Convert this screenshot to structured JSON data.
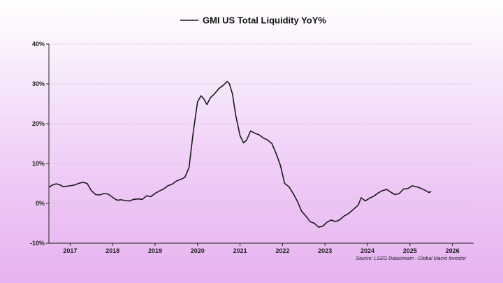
{
  "chart_data": {
    "type": "line",
    "title": "",
    "xlabel": "",
    "ylabel": "",
    "legend_position": "top-center",
    "grid": "horizontal dashed",
    "ylim": [
      -10,
      40
    ],
    "y_ticks": [
      40,
      30,
      20,
      10,
      0,
      -10
    ],
    "y_tick_labels": [
      "40%",
      "30%",
      "20%",
      "10%",
      "0%",
      "-10%"
    ],
    "x_range": [
      2016.5,
      2026.5
    ],
    "x_ticks": [
      2017,
      2018,
      2019,
      2020,
      2021,
      2022,
      2023,
      2024,
      2025,
      2026
    ],
    "x_tick_labels": [
      "2017",
      "2018",
      "2019",
      "2020",
      "2021",
      "2022",
      "2023",
      "2024",
      "2025",
      "2026"
    ],
    "source": "Source: LSEG Datastream - Global Macro Investor",
    "series": [
      {
        "name": "GMI US Total Liquidity YoY%",
        "color": "#1a1a1a",
        "x": [
          2016.5,
          2016.58,
          2016.67,
          2016.75,
          2016.83,
          2016.92,
          2017.0,
          2017.1,
          2017.2,
          2017.3,
          2017.4,
          2017.5,
          2017.6,
          2017.7,
          2017.8,
          2017.9,
          2018.0,
          2018.1,
          2018.2,
          2018.3,
          2018.4,
          2018.5,
          2018.6,
          2018.7,
          2018.8,
          2018.9,
          2019.0,
          2019.1,
          2019.2,
          2019.3,
          2019.4,
          2019.5,
          2019.6,
          2019.7,
          2019.8,
          2019.9,
          2020.0,
          2020.08,
          2020.15,
          2020.22,
          2020.3,
          2020.4,
          2020.5,
          2020.6,
          2020.7,
          2020.75,
          2020.82,
          2020.9,
          2021.0,
          2021.08,
          2021.15,
          2021.25,
          2021.35,
          2021.45,
          2021.55,
          2021.65,
          2021.75,
          2021.85,
          2021.95,
          2022.05,
          2022.15,
          2022.25,
          2022.35,
          2022.45,
          2022.55,
          2022.65,
          2022.75,
          2022.85,
          2022.95,
          2023.05,
          2023.15,
          2023.25,
          2023.35,
          2023.45,
          2023.55,
          2023.65,
          2023.7,
          2023.78,
          2023.85,
          2023.95,
          2024.05,
          2024.15,
          2024.25,
          2024.35,
          2024.45,
          2024.55,
          2024.65,
          2024.75,
          2024.85,
          2024.95,
          2025.05,
          2025.15,
          2025.25,
          2025.35,
          2025.45,
          2025.5
        ],
        "values": [
          4.0,
          4.6,
          4.9,
          4.7,
          4.2,
          4.3,
          4.4,
          4.6,
          5.0,
          5.3,
          5.0,
          3.2,
          2.2,
          2.1,
          2.5,
          2.3,
          1.5,
          0.8,
          0.9,
          0.7,
          0.6,
          1.0,
          1.1,
          1.0,
          1.9,
          1.7,
          2.5,
          3.1,
          3.6,
          4.4,
          4.8,
          5.6,
          6.0,
          6.5,
          9.0,
          18.0,
          25.5,
          27.0,
          26.2,
          24.8,
          26.5,
          27.5,
          28.8,
          29.6,
          30.6,
          30.0,
          27.5,
          22.0,
          17.0,
          15.2,
          15.8,
          18.2,
          17.6,
          17.2,
          16.4,
          15.9,
          15.0,
          12.5,
          9.5,
          5.0,
          4.2,
          2.5,
          0.5,
          -2.0,
          -3.2,
          -4.6,
          -5.0,
          -6.0,
          -5.7,
          -4.7,
          -4.2,
          -4.6,
          -4.1,
          -3.2,
          -2.6,
          -1.7,
          -1.2,
          -0.5,
          1.4,
          0.6,
          1.3,
          1.8,
          2.6,
          3.2,
          3.5,
          2.8,
          2.2,
          2.5,
          3.6,
          3.7,
          4.4,
          4.2,
          3.8,
          3.3,
          2.7,
          3.0
        ]
      }
    ]
  }
}
